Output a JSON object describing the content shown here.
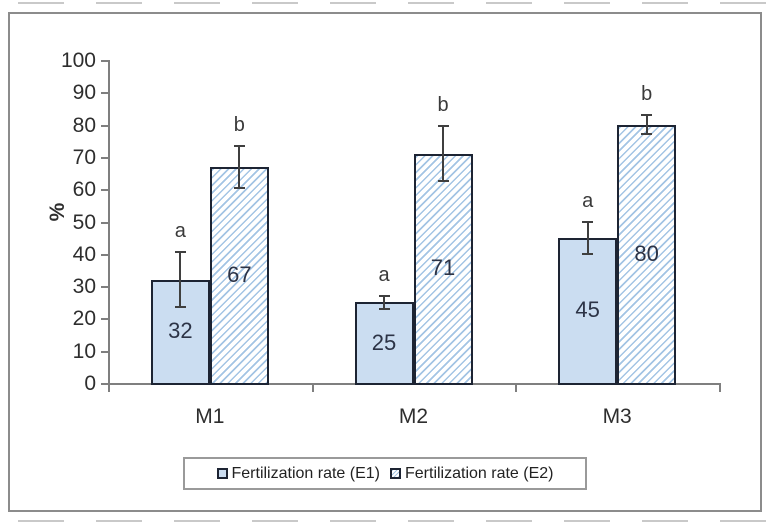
{
  "chart_data": {
    "type": "bar",
    "title": "",
    "ylabel": "%",
    "xlabel": "",
    "ylim": [
      0,
      100
    ],
    "yticks": [
      0,
      10,
      20,
      30,
      40,
      50,
      60,
      70,
      80,
      90,
      100
    ],
    "categories": [
      "M1",
      "M2",
      "M3"
    ],
    "series": [
      {
        "name": "Fertilization rate (E1)",
        "style": "solid",
        "values": [
          32,
          25,
          45
        ],
        "error_bars": [
          8.5,
          2,
          5
        ],
        "significance_letters": [
          "a",
          "a",
          "a"
        ]
      },
      {
        "name": "Fertilization rate (E2)",
        "style": "hatched",
        "values": [
          67,
          71,
          80
        ],
        "error_bars": [
          6.5,
          8.5,
          3
        ],
        "significance_letters": [
          "b",
          "b",
          "b"
        ]
      }
    ],
    "grid": false,
    "legend_position": "bottom"
  },
  "colors": {
    "bar_fill": "#cbddf1",
    "hatch_line": "#a3c4e4",
    "bar_border": "#1d2433",
    "error_bar": "#3f3f3f",
    "text": "#2e2e2e",
    "value_label": "#2c3346",
    "axis": "#7f7f7f",
    "frame_border": "#8c8c8c",
    "legend_border": "#9a9a9a",
    "background": "#ffffff"
  }
}
